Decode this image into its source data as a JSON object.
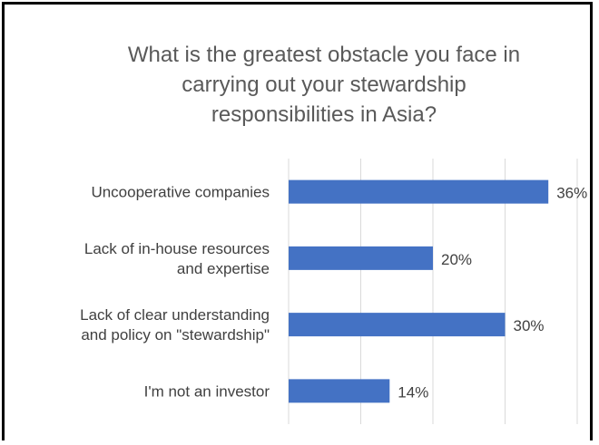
{
  "chart_data": {
    "type": "bar",
    "orientation": "horizontal",
    "title": "What is the greatest obstacle you face in carrying out your stewardship responsibilities in Asia?",
    "title_lines": [
      "What is the greatest obstacle you face in",
      "carrying out your stewardship",
      "responsibilities in Asia?"
    ],
    "categories": [
      [
        "Uncooperative companies"
      ],
      [
        "Lack of in-house resources",
        "and expertise"
      ],
      [
        "Lack of clear understanding",
        "and policy on \"stewardship\""
      ],
      [
        "I'm not an investor"
      ]
    ],
    "values": [
      36,
      20,
      30,
      14
    ],
    "data_labels": [
      "36%",
      "20%",
      "30%",
      "14%"
    ],
    "xlim": [
      0,
      40
    ],
    "grid": true,
    "legend": "none",
    "bar_color": "#4472c4",
    "gridline_color": "#d9d9d9"
  }
}
